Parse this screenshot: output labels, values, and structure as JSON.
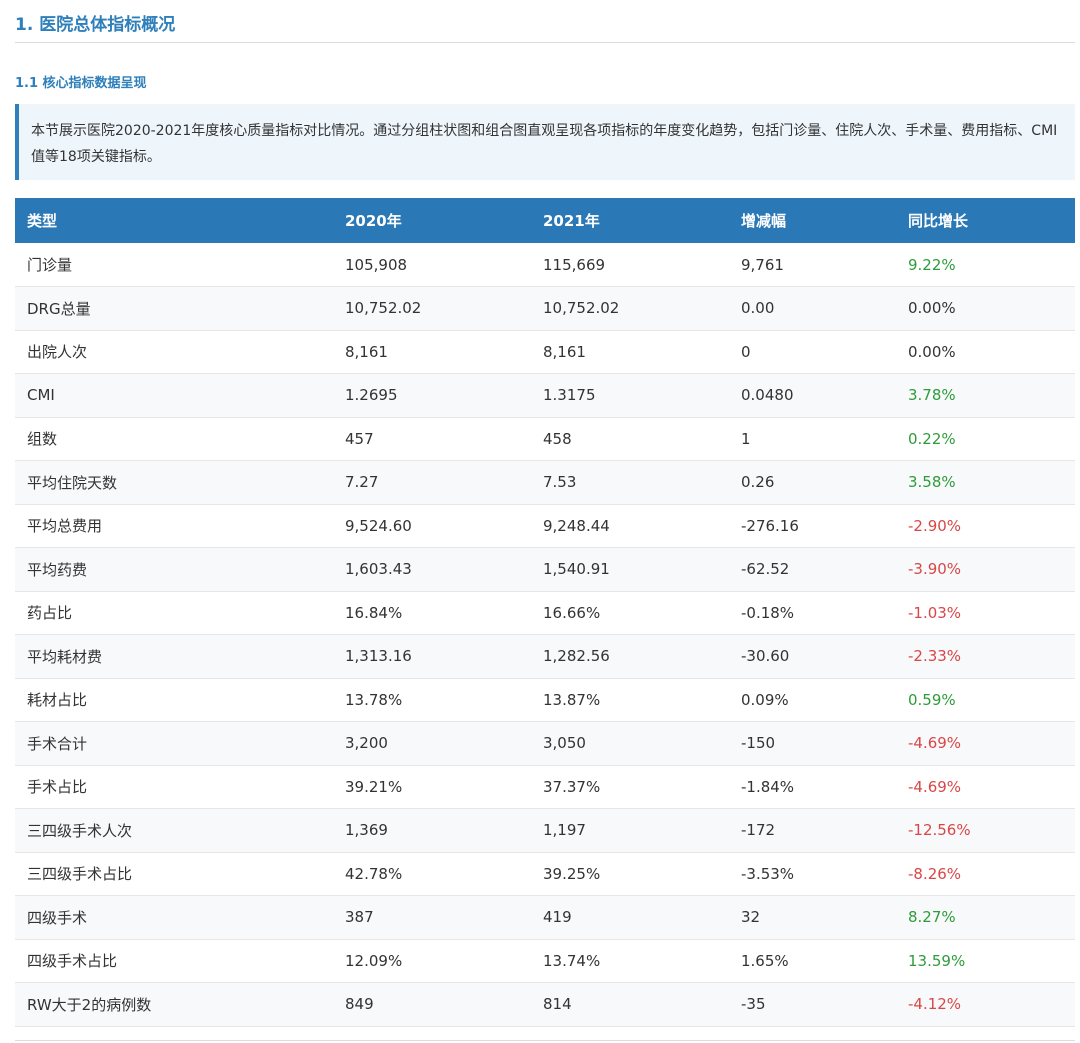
{
  "section": {
    "title": "1. 医院总体指标概况",
    "subtitle": "1.1 核心指标数据呈现",
    "note": "本节展示医院2020-2021年度核心质量指标对比情况。通过分组柱状图和组合图直观呈现各项指标的年度变化趋势，包括门诊量、住院人次、手术量、费用指标、CMI值等18项关键指标。"
  },
  "table": {
    "headers": [
      "类型",
      "2020年",
      "2021年",
      "增减幅",
      "同比增长"
    ],
    "colors": {
      "up": "#2e9c3a",
      "down": "#d84747",
      "header_bg": "#2b78b6"
    },
    "rows": [
      [
        "门诊量",
        "105,908",
        "115,669",
        "9,761",
        "9.22%",
        "up"
      ],
      [
        "DRG总量",
        "10,752.02",
        "10,752.02",
        "0.00",
        "0.00%",
        "flat"
      ],
      [
        "出院人次",
        "8,161",
        "8,161",
        "0",
        "0.00%",
        "flat"
      ],
      [
        "CMI",
        "1.2695",
        "1.3175",
        "0.0480",
        "3.78%",
        "up"
      ],
      [
        "组数",
        "457",
        "458",
        "1",
        "0.22%",
        "up"
      ],
      [
        "平均住院天数",
        "7.27",
        "7.53",
        "0.26",
        "3.58%",
        "up"
      ],
      [
        "平均总费用",
        "9,524.60",
        "9,248.44",
        "-276.16",
        "-2.90%",
        "down"
      ],
      [
        "平均药费",
        "1,603.43",
        "1,540.91",
        "-62.52",
        "-3.90%",
        "down"
      ],
      [
        "药占比",
        "16.84%",
        "16.66%",
        "-0.18%",
        "-1.03%",
        "down"
      ],
      [
        "平均耗材费",
        "1,313.16",
        "1,282.56",
        "-30.60",
        "-2.33%",
        "down"
      ],
      [
        "耗材占比",
        "13.78%",
        "13.87%",
        "0.09%",
        "0.59%",
        "up"
      ],
      [
        "手术合计",
        "3,200",
        "3,050",
        "-150",
        "-4.69%",
        "down"
      ],
      [
        "手术占比",
        "39.21%",
        "37.37%",
        "-1.84%",
        "-4.69%",
        "down"
      ],
      [
        "三四级手术人次",
        "1,369",
        "1,197",
        "-172",
        "-12.56%",
        "down"
      ],
      [
        "三四级手术占比",
        "42.78%",
        "39.25%",
        "-3.53%",
        "-8.26%",
        "down"
      ],
      [
        "四级手术",
        "387",
        "419",
        "32",
        "8.27%",
        "up"
      ],
      [
        "四级手术占比",
        "12.09%",
        "13.74%",
        "1.65%",
        "13.59%",
        "up"
      ],
      [
        "RW大于2的病例数",
        "849",
        "814",
        "-35",
        "-4.12%",
        "down"
      ]
    ]
  }
}
